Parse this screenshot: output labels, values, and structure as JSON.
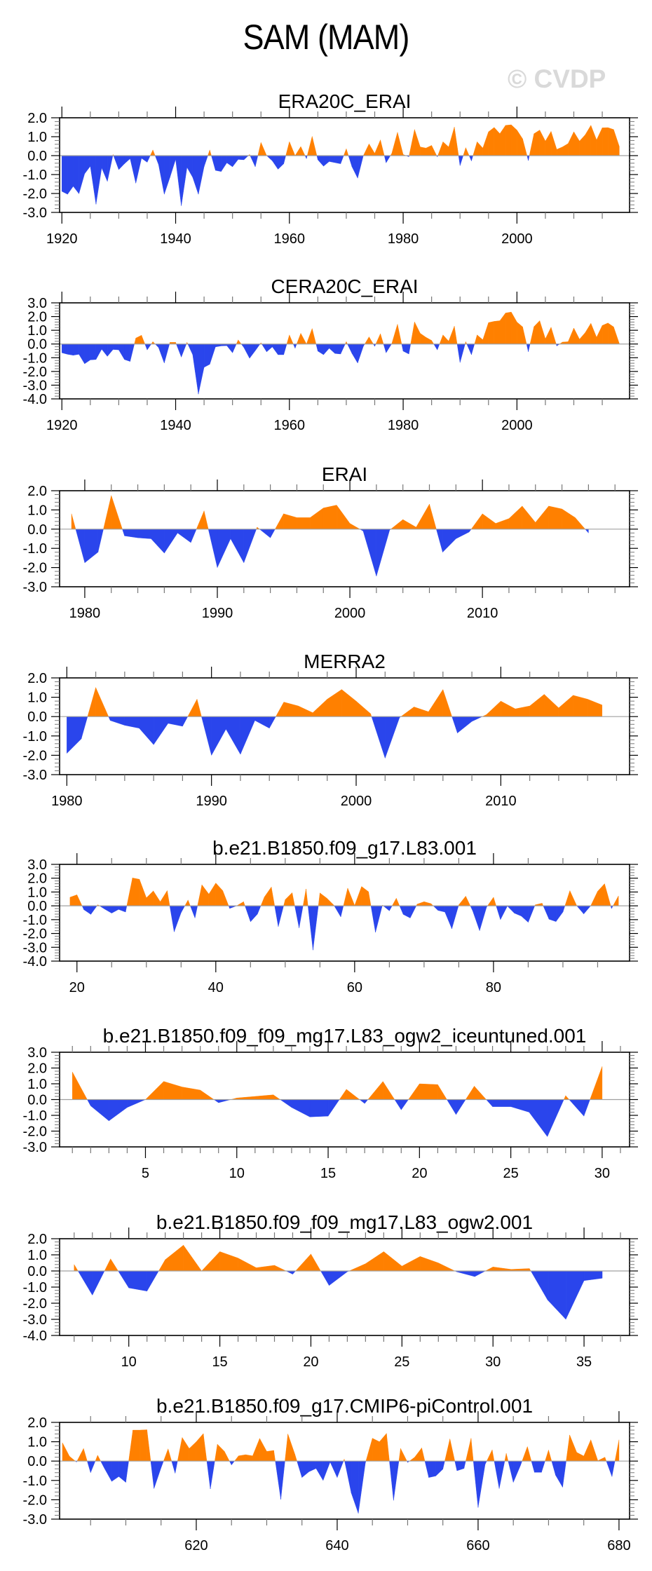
{
  "title": "SAM (MAM)",
  "watermark": "© CVDP",
  "colors": {
    "positive": "#ff8000",
    "negative": "#2a45ec",
    "zero_line": "#a0a0a0",
    "frame": "#000000"
  },
  "chart_data": [
    {
      "type": "area",
      "title": "ERA20C_ERAI",
      "xlim": [
        1919.6,
        2019.8
      ],
      "ylim": [
        -3.0,
        2.0
      ],
      "yticks": [
        -3.0,
        -2.0,
        -1.0,
        0.0,
        1.0,
        2.0
      ],
      "xticks": [
        1920,
        1940,
        1960,
        1980,
        2000
      ],
      "xminor": 5,
      "x_start": 1920,
      "values": [
        -1.89,
        -2.04,
        -1.62,
        -2.01,
        -0.96,
        -0.56,
        -2.57,
        -0.65,
        -1.36,
        0.06,
        -0.74,
        -0.43,
        -0.16,
        -1.46,
        -0.14,
        -0.35,
        0.3,
        -0.47,
        -2.04,
        -1.15,
        -0.2,
        -2.65,
        -0.62,
        -1.15,
        -2.04,
        -0.59,
        0.3,
        -0.78,
        -0.84,
        -0.38,
        -0.59,
        -0.2,
        -0.22,
        0.06,
        -0.59,
        0.7,
        0.0,
        -0.28,
        -0.72,
        -0.43,
        0.74,
        0.0,
        0.48,
        -0.16,
        1.02,
        -0.22,
        -0.56,
        -0.31,
        -0.37,
        -0.43,
        0.36,
        -0.59,
        -1.19,
        0.0,
        0.62,
        0.12,
        0.83,
        -0.38,
        0.12,
        1.23,
        0.06,
        -0.06,
        1.38,
        0.46,
        0.4,
        0.54,
        -0.07,
        0.73,
        0.46,
        1.51,
        -0.53,
        0.42,
        -0.28,
        0.73,
        0.4,
        1.26,
        1.49,
        1.16,
        1.6,
        1.63,
        1.35,
        0.89,
        -0.26,
        1.16,
        1.35,
        0.77,
        1.28,
        0.33,
        0.46,
        0.64,
        1.26,
        0.77,
        1.1,
        1.6,
        0.83,
        1.47,
        1.48,
        1.38,
        0.48
      ]
    },
    {
      "type": "area",
      "title": "CERA20C_ERAI",
      "xlim": [
        1919.6,
        2019.8
      ],
      "ylim": [
        -4.0,
        3.0
      ],
      "yticks": [
        -4.0,
        -3.0,
        -2.0,
        -1.0,
        0.0,
        1.0,
        2.0,
        3.0
      ],
      "xticks": [
        1920,
        1940,
        1960,
        1980,
        2000
      ],
      "xminor": 5,
      "x_start": 1920,
      "values": [
        -0.64,
        -0.75,
        -0.82,
        -0.75,
        -1.44,
        -1.16,
        -1.13,
        -0.38,
        -0.9,
        -0.4,
        -0.43,
        -1.13,
        -1.27,
        0.43,
        0.64,
        -0.43,
        0.17,
        -0.26,
        -1.39,
        0.12,
        0.12,
        -0.95,
        0.12,
        -0.78,
        -3.65,
        -1.7,
        -1.48,
        -0.21,
        -0.14,
        -0.12,
        -0.64,
        0.3,
        -0.26,
        -1.04,
        -0.49,
        0.09,
        -0.57,
        -0.21,
        -0.78,
        -0.78,
        0.66,
        -0.31,
        0.78,
        0.0,
        1.13,
        -0.52,
        -0.78,
        -0.31,
        -0.69,
        -0.73,
        0.17,
        -0.69,
        -1.39,
        -0.17,
        0.52,
        -0.17,
        0.75,
        -0.64,
        0.03,
        1.44,
        -0.52,
        -0.73,
        1.61,
        0.78,
        0.49,
        0.26,
        -0.43,
        0.66,
        0.21,
        1.3,
        -1.35,
        0.17,
        -0.78,
        0.66,
        0.31,
        1.56,
        1.65,
        1.7,
        2.26,
        2.33,
        1.6,
        1.25,
        -0.56,
        1.27,
        1.7,
        0.38,
        1.22,
        -0.14,
        0.14,
        0.17,
        1.16,
        0.35,
        0.83,
        1.51,
        0.49,
        1.35,
        1.53,
        1.25,
        0.03
      ]
    },
    {
      "type": "area",
      "title": "ERAI",
      "xlim": [
        1978.1,
        2021.1
      ],
      "ylim": [
        -3.0,
        2.0
      ],
      "yticks": [
        -3.0,
        -2.0,
        -1.0,
        0.0,
        1.0,
        2.0
      ],
      "xticks": [
        1980,
        1990,
        2000,
        2010
      ],
      "xminor": 2,
      "x_start": 1979,
      "values": [
        0.8,
        -1.75,
        -1.2,
        1.75,
        -0.35,
        -0.45,
        -0.5,
        -1.25,
        -0.2,
        -0.7,
        0.95,
        -2.0,
        -0.5,
        -1.75,
        0.1,
        -0.45,
        0.8,
        0.6,
        0.6,
        1.1,
        1.25,
        0.3,
        -0.1,
        -2.45,
        -0.05,
        0.5,
        0.1,
        1.3,
        -1.2,
        -0.5,
        -0.15,
        0.8,
        0.3,
        0.55,
        1.2,
        0.35,
        1.2,
        1.05,
        0.6,
        -0.2
      ]
    },
    {
      "type": "area",
      "title": "MERRA2",
      "xlim": [
        1979.5,
        2018.9
      ],
      "ylim": [
        -3.0,
        2.0
      ],
      "yticks": [
        -3.0,
        -2.0,
        -1.0,
        0.0,
        1.0,
        2.0
      ],
      "xticks": [
        1980,
        1990,
        2000,
        2010
      ],
      "xminor": 2,
      "x_start": 1980,
      "values": [
        -1.9,
        -1.15,
        1.5,
        -0.2,
        -0.45,
        -0.6,
        -1.45,
        -0.35,
        -0.5,
        0.9,
        -2.0,
        -0.65,
        -1.95,
        -0.2,
        -0.6,
        0.75,
        0.55,
        0.2,
        0.9,
        1.4,
        0.8,
        0.15,
        -2.15,
        -0.05,
        0.5,
        0.25,
        1.4,
        -0.85,
        -0.25,
        0.1,
        0.8,
        0.4,
        0.55,
        1.15,
        0.45,
        1.1,
        0.9,
        0.6
      ]
    },
    {
      "type": "area",
      "title": "b.e21.B1850.f09_g17.L83.001",
      "xlim": [
        17.5,
        99.6
      ],
      "ylim": [
        -4.0,
        3.0
      ],
      "yticks": [
        -4.0,
        -3.0,
        -2.0,
        -1.0,
        0.0,
        1.0,
        2.0,
        3.0
      ],
      "xticks": [
        20,
        40,
        60,
        80
      ],
      "xminor": 5,
      "x_start": 19,
      "values": [
        0.62,
        0.8,
        -0.28,
        -0.62,
        0.08,
        -0.24,
        -0.53,
        -0.26,
        -0.45,
        2.02,
        1.92,
        0.58,
        1.08,
        0.3,
        1.1,
        -1.88,
        -0.5,
        0.42,
        -0.88,
        1.52,
        0.85,
        1.65,
        1.1,
        -0.19,
        0.0,
        0.3,
        -1.15,
        -0.6,
        0.64,
        1.36,
        -1.5,
        0.45,
        0.95,
        -1.6,
        1.22,
        -3.2,
        0.93,
        0.55,
        0.05,
        -0.8,
        1.28,
        0.03,
        1.4,
        1.02,
        -1.92,
        0.05,
        -0.36,
        0.55,
        -0.62,
        -0.88,
        0.12,
        0.3,
        0.16,
        -0.33,
        -0.45,
        -1.66,
        0.07,
        0.7,
        -0.36,
        -1.8,
        -0.1,
        0.62,
        -1.0,
        -0.02,
        -0.53,
        -0.74,
        -1.19,
        0.07,
        0.19,
        -0.97,
        -1.14,
        -0.45,
        1.1,
        0.0,
        -0.59,
        0.0,
        1.05,
        1.6,
        -0.2,
        0.72
      ]
    },
    {
      "type": "area",
      "title": "b.e21.B1850.f09_f09_mg17.L83_ogw2_iceuntuned.001",
      "xlim": [
        0.3,
        31.5
      ],
      "ylim": [
        -3.0,
        3.0
      ],
      "yticks": [
        -3.0,
        -2.0,
        -1.0,
        0.0,
        1.0,
        2.0,
        3.0
      ],
      "xticks": [
        5,
        10,
        15,
        20,
        25,
        30
      ],
      "xminor": 1,
      "x_start": 1,
      "values": [
        1.75,
        -0.4,
        -1.35,
        -0.5,
        0.0,
        1.15,
        0.8,
        0.6,
        -0.2,
        0.1,
        0.2,
        0.3,
        -0.5,
        -1.1,
        -1.05,
        0.65,
        -0.25,
        1.15,
        -0.65,
        1.0,
        0.95,
        -0.95,
        0.85,
        -0.45,
        -0.45,
        -0.8,
        -2.35,
        0.25,
        -1.05,
        2.1
      ]
    },
    {
      "type": "area",
      "title": "b.e21.B1850.f09_f09_mg17.L83_ogw2.001",
      "xlim": [
        6.2,
        37.5
      ],
      "ylim": [
        -4.0,
        2.0
      ],
      "yticks": [
        -4.0,
        -3.0,
        -2.0,
        -1.0,
        0.0,
        1.0,
        2.0
      ],
      "xticks": [
        10,
        15,
        20,
        25,
        30,
        35
      ],
      "xminor": 1,
      "x_start": 7,
      "values": [
        0.4,
        -1.5,
        0.75,
        -1.05,
        -1.25,
        0.7,
        1.6,
        0.0,
        1.2,
        0.8,
        0.2,
        0.35,
        -0.2,
        1.05,
        -0.9,
        -0.05,
        0.45,
        1.2,
        0.3,
        0.9,
        0.5,
        -0.05,
        -0.35,
        0.25,
        0.1,
        0.15,
        -1.8,
        -3.0,
        -0.6,
        -0.45
      ]
    },
    {
      "type": "area",
      "title": "b.e21.B1850.f09_g17.CMIP6-piControl.001",
      "xlim": [
        600.6,
        681.5
      ],
      "ylim": [
        -3.0,
        2.0
      ],
      "yticks": [
        -3.0,
        -2.0,
        -1.0,
        0.0,
        1.0,
        2.0
      ],
      "xticks": [
        620,
        640,
        660,
        680
      ],
      "xminor": 5,
      "x_start": 601,
      "values": [
        0.95,
        0.25,
        -0.05,
        0.65,
        -0.6,
        0.3,
        -0.4,
        -1.05,
        -0.8,
        -1.1,
        1.6,
        1.6,
        1.62,
        -1.42,
        -0.35,
        0.63,
        -0.63,
        1.22,
        0.65,
        1.0,
        1.42,
        -1.44,
        0.87,
        0.5,
        -0.2,
        0.27,
        0.33,
        0.27,
        1.17,
        0.5,
        0.55,
        -1.98,
        1.4,
        0.35,
        -0.85,
        -0.55,
        -0.38,
        -1.0,
        -0.05,
        -0.85,
        0.1,
        -1.65,
        -2.7,
        -0.1,
        1.18,
        1.0,
        1.43,
        -2.03,
        0.65,
        -0.07,
        0.2,
        0.68,
        -0.85,
        -0.77,
        -0.42,
        1.15,
        -0.5,
        -0.38,
        1.18,
        -2.4,
        -0.17,
        0.58,
        -1.42,
        0.4,
        -1.1,
        -0.24,
        0.75,
        -0.58,
        -0.58,
        0.57,
        -0.73,
        -1.35,
        1.35,
        0.45,
        0.26,
        1.1,
        0.02,
        0.2,
        -0.8,
        1.1
      ]
    }
  ]
}
